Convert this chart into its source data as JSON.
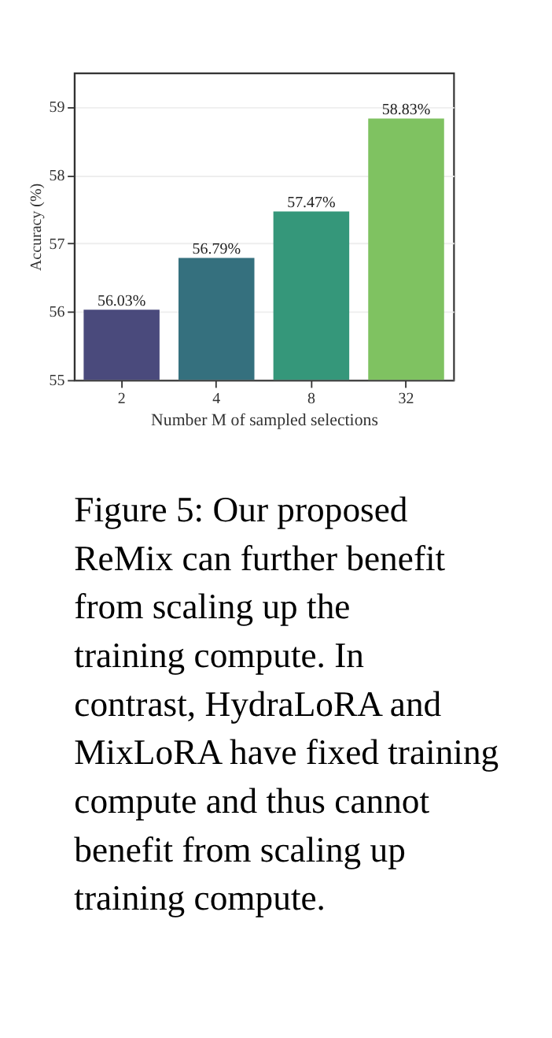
{
  "chart_data": {
    "type": "bar",
    "categories": [
      "2",
      "4",
      "8",
      "32"
    ],
    "values": [
      56.03,
      56.79,
      57.47,
      58.83
    ],
    "colors": [
      "#4a4a7c",
      "#35707e",
      "#35977a",
      "#7fc261"
    ],
    "value_labels": [
      "56.03%",
      "56.79%",
      "57.47%",
      "58.83%"
    ],
    "xlabel": "Number M of sampled selections",
    "ylabel": "Accuracy (%)",
    "ylim": [
      55,
      59.5
    ],
    "yticks": [
      55,
      56,
      57,
      58,
      59
    ],
    "grid": "y",
    "annotations": [
      "Figure 5: Our proposed ReMix can further benefit from scaling up the training compute. In contrast, HydraLoRA and MixLoRA have fixed training compute and thus cannot benefit from scaling up training compute."
    ]
  }
}
